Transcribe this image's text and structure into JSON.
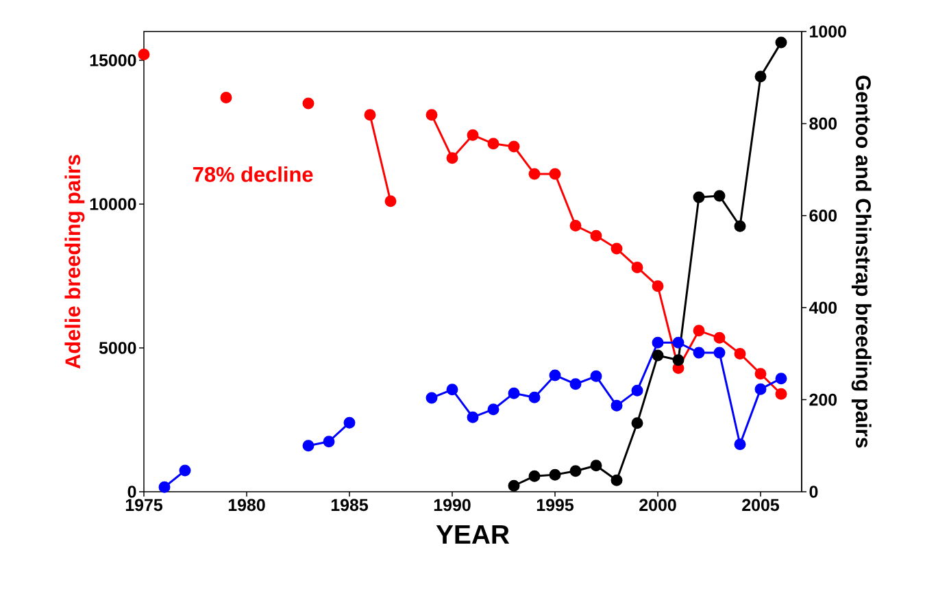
{
  "chart_data": {
    "type": "line",
    "xlabel": "YEAR",
    "ylabel": "Adelie breeding pairs",
    "y2label": "Gentoo and Chinstrap breeding pairs",
    "annotations": [
      "78% decline"
    ],
    "x": [
      1975,
      1976,
      1977,
      1978,
      1979,
      1980,
      1981,
      1982,
      1983,
      1984,
      1985,
      1986,
      1987,
      1988,
      1989,
      1990,
      1991,
      1992,
      1993,
      1994,
      1995,
      1996,
      1997,
      1998,
      1999,
      2000,
      2001,
      2002,
      2003,
      2004,
      2005,
      2006
    ],
    "series": [
      {
        "color": "#ff0000",
        "values": [
          15200,
          null,
          null,
          null,
          13700,
          null,
          null,
          null,
          13500,
          null,
          null,
          13100,
          10100,
          null,
          13100,
          11600,
          12400,
          12100,
          12000,
          11050,
          11050,
          9250,
          8900,
          8450,
          7800,
          7150,
          4300,
          5600,
          5350,
          4800,
          4100,
          3400
        ]
      },
      {
        "color": "#0000ff",
        "axis": "y2",
        "values": [
          null,
          10,
          46,
          null,
          null,
          null,
          null,
          null,
          100,
          109,
          150,
          null,
          null,
          null,
          204,
          222,
          162,
          179,
          214,
          205,
          253,
          234,
          251,
          187,
          220,
          324,
          324,
          302,
          302,
          103,
          223,
          246
        ]
      },
      {
        "color": "#000000",
        "axis": "y2",
        "values": [
          null,
          null,
          null,
          null,
          null,
          null,
          null,
          null,
          null,
          null,
          null,
          null,
          null,
          null,
          null,
          null,
          null,
          null,
          13,
          34,
          37,
          45,
          57,
          25,
          149,
          296,
          286,
          640,
          643,
          577,
          902,
          976
        ]
      }
    ],
    "xlim": [
      1975,
      2007
    ],
    "xticks": [
      1975,
      1980,
      1985,
      1990,
      1995,
      2000,
      2005
    ],
    "ylim": [
      0,
      16000
    ],
    "yticks": [
      0,
      5000,
      10000,
      15000
    ],
    "y2lim": [
      0,
      1000
    ],
    "y2ticks": [
      0,
      200,
      400,
      600,
      800,
      1000
    ],
    "grid": false,
    "marker": "circle",
    "line_style": "solid"
  }
}
